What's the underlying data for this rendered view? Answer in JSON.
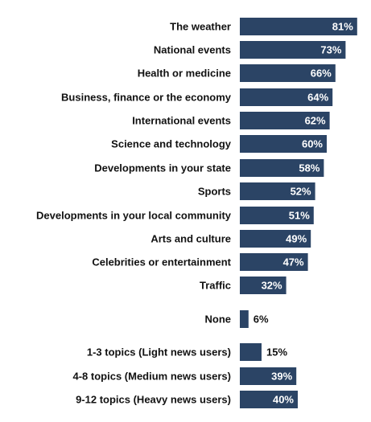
{
  "chart_data": {
    "type": "bar",
    "orientation": "horizontal",
    "title": "",
    "xlabel": "",
    "ylabel": "",
    "xlim": [
      0,
      100
    ],
    "grid": false,
    "legend": "none",
    "bar_color": "#2b4465",
    "inside_label_color": "#ffffff",
    "outside_label_color": "#111111",
    "categories": [
      "The weather",
      "National events",
      "Health or medicine",
      "Business, finance or the economy",
      "International events",
      "Science and technology",
      "Developments in your state",
      "Sports",
      "Developments in your local community",
      "Arts and culture",
      "Celebrities or entertainment",
      "Traffic",
      "None",
      "1-3 topics (Light news users)",
      "4-8 topics (Medium news users)",
      "9-12 topics (Heavy news users)"
    ],
    "values": [
      81,
      73,
      66,
      64,
      62,
      60,
      58,
      52,
      51,
      49,
      47,
      32,
      6,
      15,
      39,
      40
    ],
    "value_labels": [
      "81%",
      "73%",
      "66%",
      "64%",
      "62%",
      "60%",
      "58%",
      "52%",
      "51%",
      "49%",
      "47%",
      "32%",
      "6%",
      "15%",
      "39%",
      "40%"
    ]
  }
}
